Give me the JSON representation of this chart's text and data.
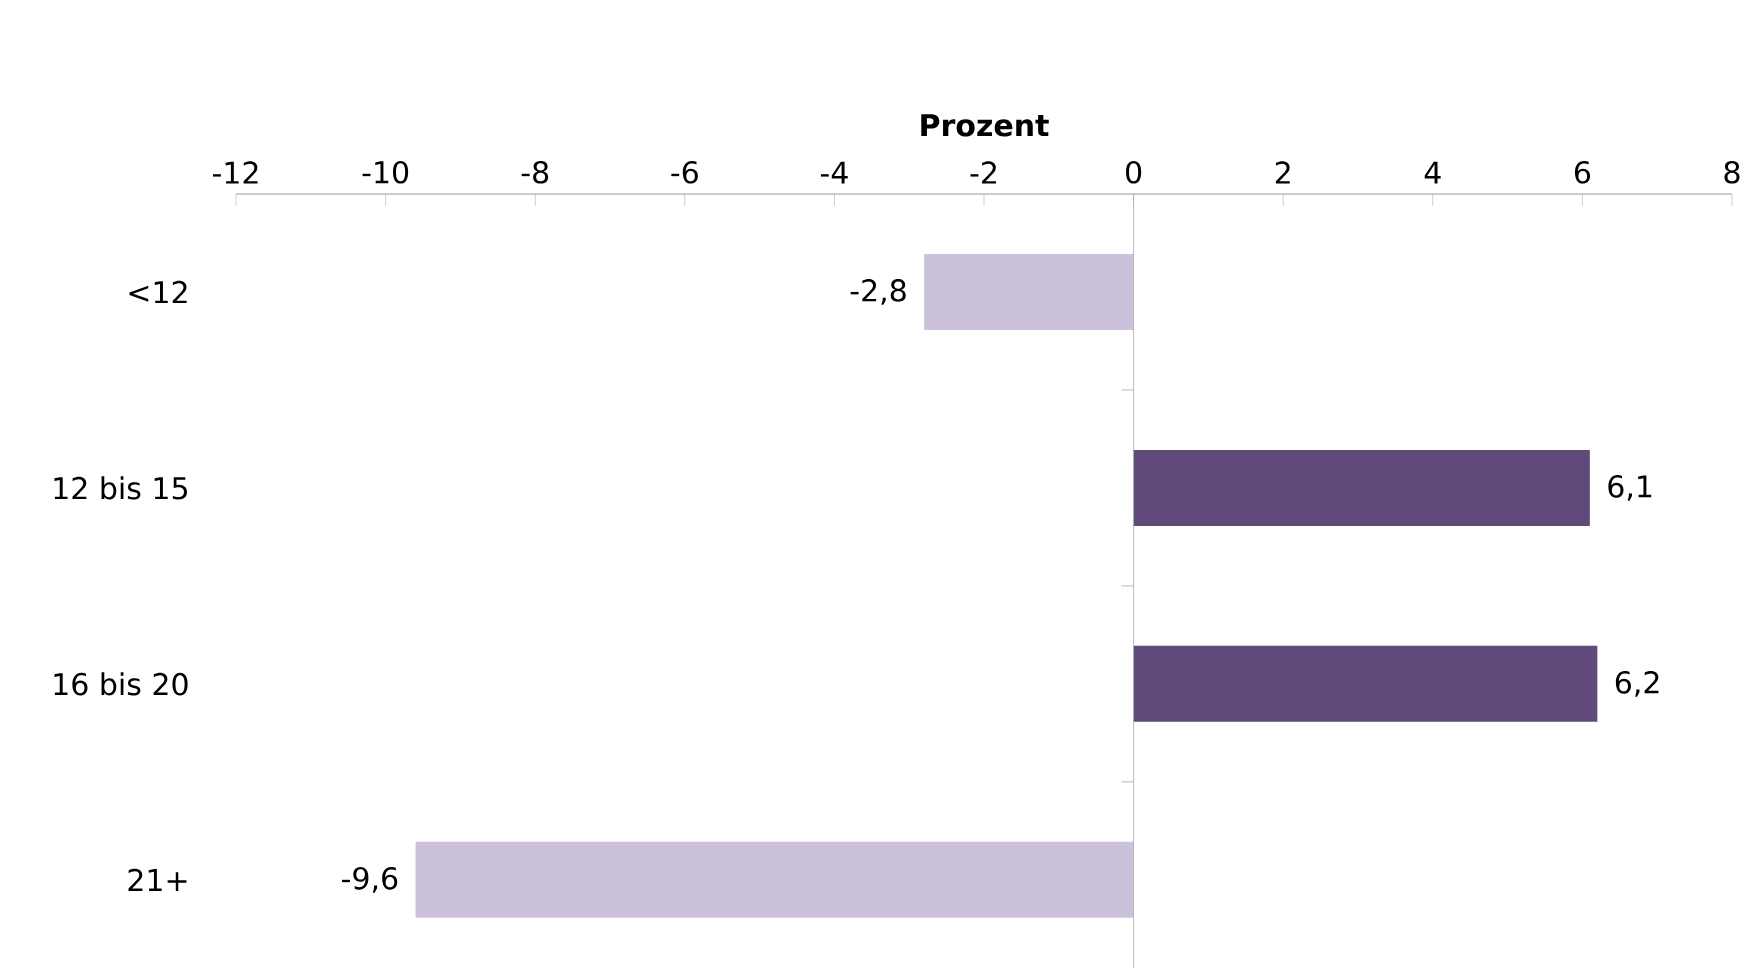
{
  "chart_data": {
    "type": "bar",
    "orientation": "horizontal",
    "xlabel": "Prozent",
    "categories": [
      "<12",
      "12 bis 15",
      "16 bis 20",
      "21+"
    ],
    "values": [
      -2.8,
      6.1,
      6.2,
      -9.6
    ],
    "colors": [
      "#ccc1da",
      "#604a7b",
      "#604a7b",
      "#ccc1da"
    ],
    "value_labels": [
      "-2,8",
      "6,1",
      "6,2",
      "-9,6"
    ],
    "xlim": [
      -12,
      8
    ],
    "xticks": [
      -12,
      -10,
      -8,
      -6,
      -4,
      -2,
      0,
      2,
      4,
      6,
      8
    ],
    "ref_lines": [
      {
        "axis": "x",
        "value": 0,
        "color": "#a6a6a6"
      }
    ]
  }
}
